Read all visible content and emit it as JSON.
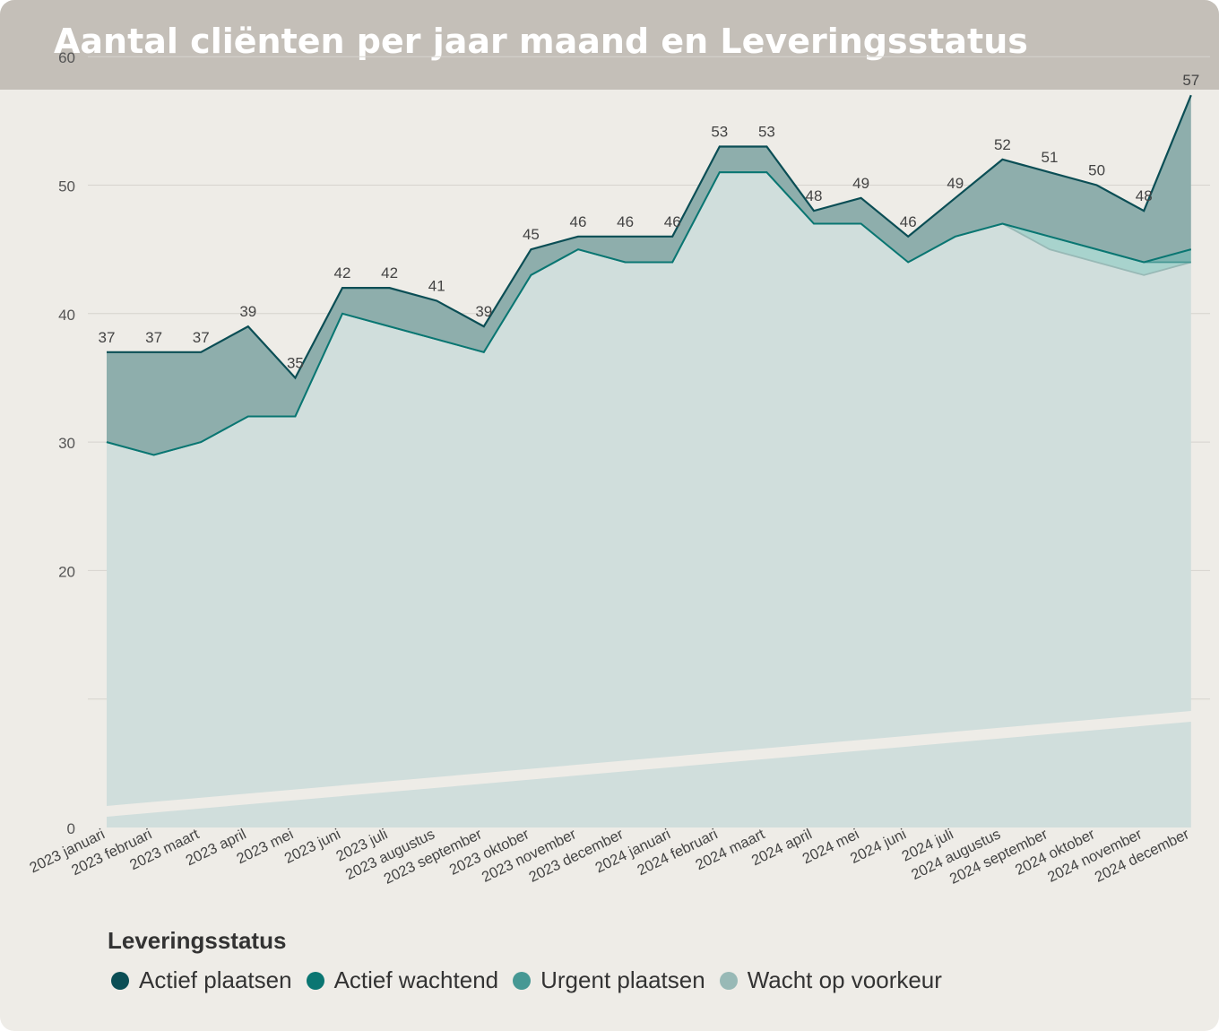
{
  "title": "Aantal cliënten per jaar maand en Leveringsstatus",
  "legend": {
    "title": "Leveringsstatus",
    "items": [
      {
        "label": "Actief plaatsen",
        "color": "#0b4e55"
      },
      {
        "label": "Actief wachtend",
        "color": "#0a7672"
      },
      {
        "label": "Urgent plaatsen",
        "color": "#469894"
      },
      {
        "label": "Wacht op voorkeur",
        "color": "#98b9b6"
      }
    ]
  },
  "chart_data": {
    "type": "area",
    "categories": [
      "2023 januari",
      "2023 februari",
      "2023 maart",
      "2023 april",
      "2023 mei",
      "2023 juni",
      "2023 juli",
      "2023 augustus",
      "2023 september",
      "2023 oktober",
      "2023 november",
      "2023 december",
      "2024 januari",
      "2024 februari",
      "2024 maart",
      "2024 april",
      "2024 mei",
      "2024 juni",
      "2024 juli",
      "2024 augustus",
      "2024 september",
      "2024 oktober",
      "2024 november",
      "2024 december"
    ],
    "ylim": [
      0,
      60
    ],
    "yticks": [
      0,
      10,
      20,
      30,
      40,
      50,
      60
    ],
    "ytick_labels": [
      "0",
      "",
      "20",
      "30",
      "40",
      "50",
      "60"
    ],
    "grid": true,
    "stacking": "cumulative",
    "series": [
      {
        "name": "Wacht op voorkeur",
        "values": [
          30,
          29,
          30,
          32,
          32,
          40,
          39,
          38,
          37,
          43,
          45,
          44,
          44,
          51,
          51,
          47,
          47,
          44,
          46,
          47,
          45,
          44,
          43,
          44
        ]
      },
      {
        "name": "Urgent plaatsen",
        "values": [
          0,
          0,
          0,
          0,
          0,
          0,
          0,
          0,
          0,
          0,
          0,
          0,
          0,
          0,
          0,
          0,
          0,
          0,
          0,
          0,
          1,
          1,
          1,
          0
        ]
      },
      {
        "name": "Actief wachtend",
        "values": [
          0,
          0,
          0,
          0,
          0,
          0,
          0,
          0,
          0,
          0,
          0,
          0,
          0,
          0,
          0,
          0,
          0,
          0,
          0,
          0,
          0,
          0,
          0,
          1
        ]
      },
      {
        "name": "Actief plaatsen",
        "values": [
          7,
          8,
          7,
          7,
          3,
          2,
          3,
          3,
          2,
          2,
          1,
          2,
          2,
          2,
          2,
          1,
          2,
          2,
          3,
          5,
          5,
          5,
          4,
          12
        ]
      }
    ],
    "totals": [
      37,
      37,
      37,
      39,
      35,
      42,
      42,
      41,
      39,
      45,
      46,
      46,
      46,
      53,
      53,
      48,
      49,
      46,
      49,
      52,
      51,
      50,
      48,
      57
    ]
  }
}
